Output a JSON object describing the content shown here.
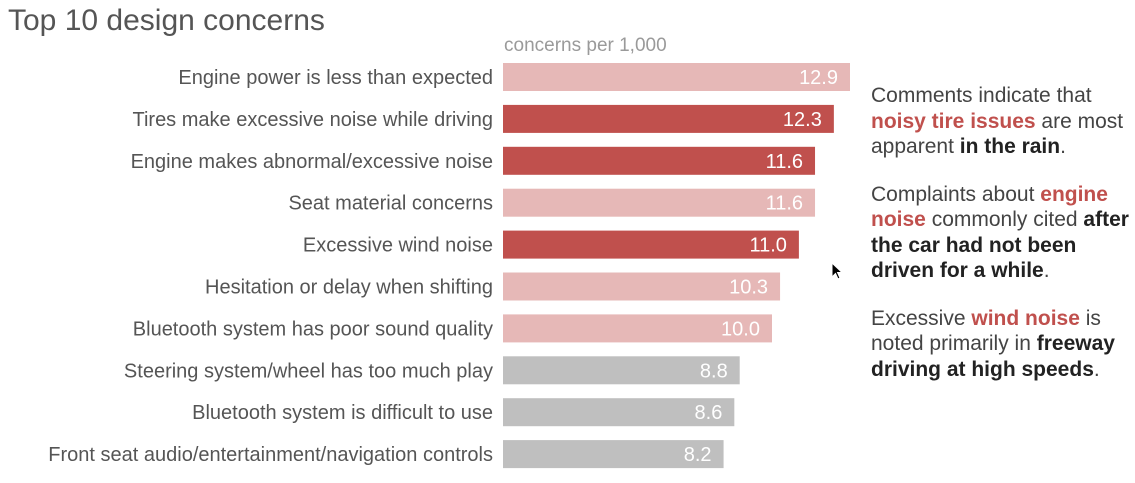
{
  "title": "Top 10 design concerns",
  "subtitle": "concerns per 1,000",
  "colors": {
    "light_pink": "#e6b8b7",
    "dark_red": "#c0504d",
    "gray": "#bfbfbf",
    "label_text": "#555555",
    "value_text": "#ffffff"
  },
  "chart_data": {
    "type": "bar",
    "orientation": "horizontal",
    "categories": [
      "Engine power is less than expected",
      "Tires make excessive noise while driving",
      "Engine makes abnormal/excessive noise",
      "Seat material concerns",
      "Excessive wind noise",
      "Hesitation or delay when shifting",
      "Bluetooth system has poor sound quality",
      "Steering system/wheel has too much play",
      "Bluetooth system is difficult to use",
      "Front seat audio/entertainment/navigation controls"
    ],
    "values": [
      12.9,
      12.3,
      11.6,
      11.6,
      11.0,
      10.3,
      10.0,
      8.8,
      8.6,
      8.2
    ],
    "value_labels": [
      "12.9",
      "12.3",
      "11.6",
      "11.6",
      "11.0",
      "10.3",
      "10.0",
      "8.8",
      "8.6",
      "8.2"
    ],
    "bar_colors": [
      "light_pink",
      "dark_red",
      "dark_red",
      "light_pink",
      "dark_red",
      "light_pink",
      "light_pink",
      "gray",
      "gray",
      "gray"
    ],
    "xlim": [
      0,
      12.9
    ],
    "grid": false,
    "legend": "none"
  },
  "annotations": [
    {
      "segments": [
        {
          "text": "Comments indicate that ",
          "style": "plain"
        },
        {
          "text": "noisy tire issues",
          "style": "hl"
        },
        {
          "text": " are most apparent ",
          "style": "plain"
        },
        {
          "text": "in the rain",
          "style": "em"
        },
        {
          "text": ".",
          "style": "plain"
        }
      ]
    },
    {
      "segments": [
        {
          "text": "Complaints about ",
          "style": "plain"
        },
        {
          "text": "engine noise",
          "style": "hl"
        },
        {
          "text": " commonly cited ",
          "style": "plain"
        },
        {
          "text": "after the car had not been driven for a while",
          "style": "em"
        },
        {
          "text": ".",
          "style": "plain"
        }
      ]
    },
    {
      "segments": [
        {
          "text": "Excessive ",
          "style": "plain"
        },
        {
          "text": "wind noise",
          "style": "hl"
        },
        {
          "text": " is noted primarily in ",
          "style": "plain"
        },
        {
          "text": "freeway driving at high speeds",
          "style": "em"
        },
        {
          "text": ".",
          "style": "plain"
        }
      ]
    }
  ]
}
